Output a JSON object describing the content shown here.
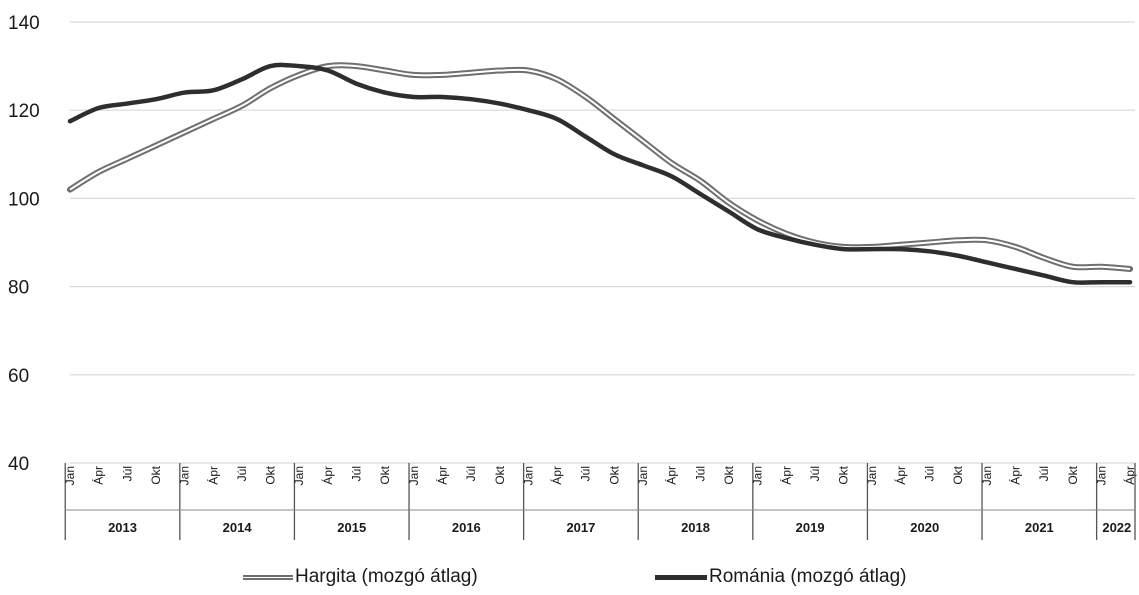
{
  "chart_data": {
    "type": "line",
    "title": "",
    "xlabel": "",
    "ylabel": "",
    "ylim": [
      40,
      140
    ],
    "yticks": [
      40,
      60,
      80,
      100,
      120,
      140
    ],
    "grid": "horizontal",
    "legend_position": "bottom",
    "month_tick_labels": [
      "Jan",
      "Ápr",
      "Júl",
      "Okt"
    ],
    "year_labels": [
      "2013",
      "2014",
      "2015",
      "2016",
      "2017",
      "2018",
      "2019",
      "2020",
      "2021",
      "2022"
    ],
    "x": [
      "2013-01",
      "2013-04",
      "2013-07",
      "2013-10",
      "2014-01",
      "2014-04",
      "2014-07",
      "2014-10",
      "2015-01",
      "2015-04",
      "2015-07",
      "2015-10",
      "2016-01",
      "2016-04",
      "2016-07",
      "2016-10",
      "2017-01",
      "2017-04",
      "2017-07",
      "2017-10",
      "2018-01",
      "2018-04",
      "2018-07",
      "2018-10",
      "2019-01",
      "2019-04",
      "2019-07",
      "2019-10",
      "2020-01",
      "2020-04",
      "2020-07",
      "2020-10",
      "2021-01",
      "2021-04",
      "2021-07",
      "2021-10",
      "2022-01",
      "2022-04"
    ],
    "series": [
      {
        "name": "Hargita (mozgó átlag)",
        "color": "#6f6f6f",
        "style": "double",
        "values": [
          102,
          106,
          109,
          112,
          115,
          118,
          121,
          125,
          128,
          130,
          130,
          129,
          128,
          128,
          128.5,
          129,
          129,
          127,
          123,
          118,
          113,
          108,
          104,
          99,
          95,
          92,
          90,
          89,
          89,
          89.5,
          90,
          90.5,
          90.5,
          89,
          86.5,
          84.5,
          84.5,
          84
        ]
      },
      {
        "name": "Románia (mozgó átlag)",
        "color": "#2e2e2e",
        "style": "solid",
        "values": [
          117.5,
          120.5,
          121.5,
          122.5,
          124,
          124.5,
          127,
          130,
          130,
          129,
          126,
          124,
          123,
          123,
          122.5,
          121.5,
          120,
          118,
          114,
          110,
          107.5,
          105,
          101,
          97,
          93,
          91,
          89.5,
          88.5,
          88.5,
          88.5,
          88,
          87,
          85.5,
          84,
          82.5,
          81,
          81,
          81
        ]
      }
    ]
  }
}
